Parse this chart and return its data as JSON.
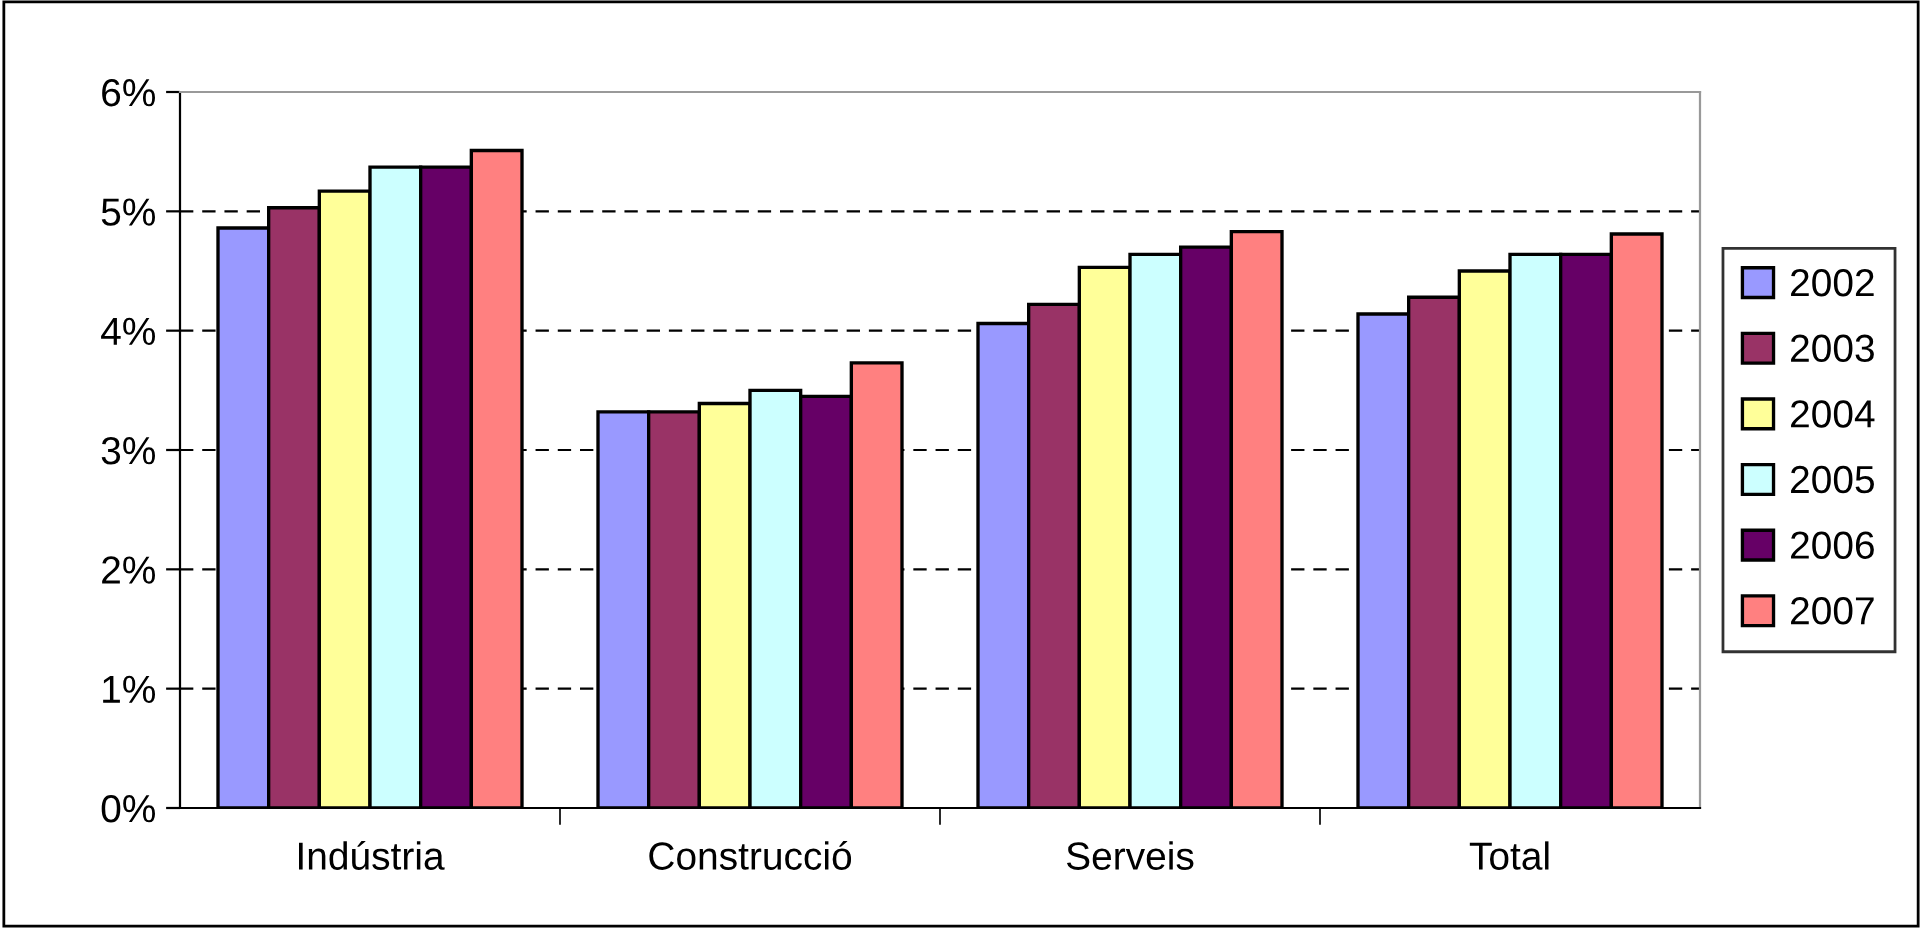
{
  "chart_data": {
    "type": "bar",
    "categories": [
      "Indústria",
      "Construcció",
      "Serveis",
      "Total"
    ],
    "series": [
      {
        "name": "2002",
        "color": "#9999ff",
        "values": [
          4.86,
          3.32,
          4.06,
          4.14
        ]
      },
      {
        "name": "2003",
        "color": "#993366",
        "values": [
          5.03,
          3.32,
          4.22,
          4.28
        ]
      },
      {
        "name": "2004",
        "color": "#ffff99",
        "values": [
          5.17,
          3.39,
          4.53,
          4.5
        ]
      },
      {
        "name": "2005",
        "color": "#ccffff",
        "values": [
          5.37,
          3.5,
          4.64,
          4.64
        ]
      },
      {
        "name": "2006",
        "color": "#660066",
        "values": [
          5.37,
          3.45,
          4.7,
          4.64
        ]
      },
      {
        "name": "2007",
        "color": "#ff8080",
        "values": [
          5.51,
          3.73,
          4.83,
          4.81
        ]
      }
    ],
    "ylim": [
      0,
      6
    ],
    "yticks": [
      {
        "value": 0,
        "label": "0%"
      },
      {
        "value": 1,
        "label": "1%"
      },
      {
        "value": 2,
        "label": "2%"
      },
      {
        "value": 3,
        "label": "3%"
      },
      {
        "value": 4,
        "label": "4%"
      },
      {
        "value": 5,
        "label": "5%"
      },
      {
        "value": 6,
        "label": "6%"
      }
    ],
    "grid": "y",
    "legend": "right"
  }
}
